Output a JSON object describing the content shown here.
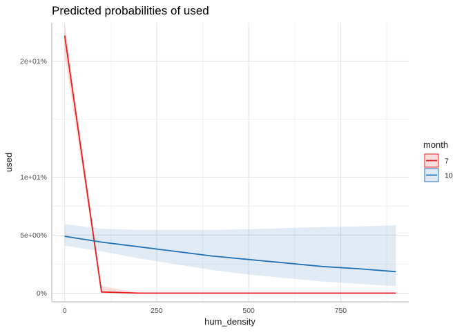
{
  "chart_data": {
    "type": "line",
    "title": "Predicted probabilities of used",
    "xlabel": "hum_density",
    "ylabel": "used",
    "xlim": [
      -35,
      935
    ],
    "ylim": [
      -0.75,
      23.3
    ],
    "x_ticks": [
      0,
      250,
      500,
      750
    ],
    "x_tick_labels": [
      "0",
      "250",
      "500",
      "750"
    ],
    "y_ticks": [
      0,
      5,
      10,
      20
    ],
    "y_tick_labels": [
      "0%",
      "5e+00%",
      "1e+01%",
      "2e+01%"
    ],
    "grid": true,
    "legend": {
      "title": "month",
      "position": "right"
    },
    "series": [
      {
        "name": "7",
        "color": "#e41a1c",
        "x": [
          0,
          100,
          200,
          300,
          400,
          500,
          600,
          700,
          800,
          900
        ],
        "y": [
          22.2,
          0.1,
          0.0,
          0.0,
          0.0,
          0.0,
          0.0,
          0.0,
          0.0,
          0.0
        ],
        "lower": [
          20.5,
          0.0,
          0.0,
          0.0,
          0.0,
          0.0,
          0.0,
          0.0,
          0.0,
          0.0
        ],
        "upper": [
          23.2,
          0.6,
          0.05,
          0.0,
          0.0,
          0.0,
          0.0,
          0.0,
          0.0,
          0.0
        ]
      },
      {
        "name": "10",
        "color": "#2171b5",
        "x": [
          0,
          100,
          200,
          300,
          400,
          500,
          600,
          700,
          800,
          900
        ],
        "y": [
          4.9,
          4.4,
          4.0,
          3.6,
          3.2,
          2.9,
          2.6,
          2.3,
          2.1,
          1.85
        ],
        "lower": [
          4.1,
          3.6,
          3.0,
          2.5,
          2.0,
          1.6,
          1.3,
          1.0,
          0.8,
          0.6
        ],
        "upper": [
          5.95,
          5.55,
          5.45,
          5.45,
          5.45,
          5.5,
          5.6,
          5.7,
          5.75,
          5.85
        ]
      }
    ]
  }
}
